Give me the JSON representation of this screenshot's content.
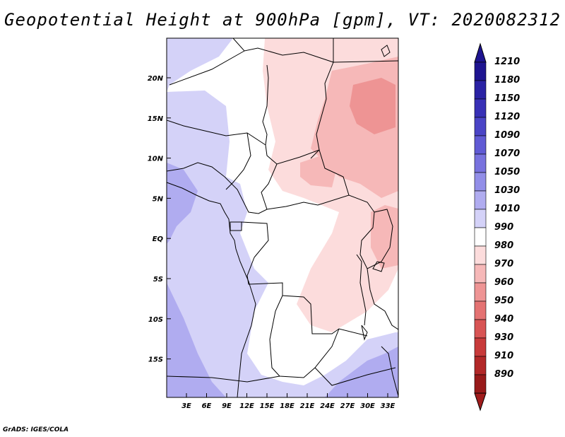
{
  "title": "Geopotential Height at 900hPa [gpm], VT: 2020082312",
  "credit": "GrADS: IGES/COLA",
  "map": {
    "lat_ticks": [
      "20N",
      "15N",
      "10N",
      "5N",
      "EQ",
      "5S",
      "10S",
      "15S"
    ],
    "lon_ticks": [
      "3E",
      "6E",
      "9E",
      "12E",
      "15E",
      "18E",
      "21E",
      "24E",
      "27E",
      "30E",
      "33E"
    ],
    "regions": [
      {
        "name": "low-northeast",
        "level": 970
      },
      {
        "name": "low-sudan-core",
        "level": 960
      },
      {
        "name": "low-central",
        "level": 980
      },
      {
        "name": "neutral-congo",
        "level": 990
      },
      {
        "name": "high-atlantic",
        "level": 1030
      },
      {
        "name": "high-gulf-guinea",
        "level": 1050
      },
      {
        "name": "high-southeast",
        "level": 1030
      }
    ]
  },
  "colorbar": {
    "levels": [
      {
        "label": "1210",
        "color": "#1e1490"
      },
      {
        "label": "1180",
        "color": "#2a22a4"
      },
      {
        "label": "1150",
        "color": "#3830b6"
      },
      {
        "label": "1120",
        "color": "#4a44c6"
      },
      {
        "label": "1090",
        "color": "#605ad4"
      },
      {
        "label": "1070",
        "color": "#7872de"
      },
      {
        "label": "1050",
        "color": "#928ee8"
      },
      {
        "label": "1030",
        "color": "#b0acf0"
      },
      {
        "label": "1010",
        "color": "#d4d2f8"
      },
      {
        "label": "990",
        "color": "#ffffff"
      },
      {
        "label": "980",
        "color": "#fcdcdc"
      },
      {
        "label": "970",
        "color": "#f6b8b8"
      },
      {
        "label": "960",
        "color": "#ee9494"
      },
      {
        "label": "950",
        "color": "#e47272"
      },
      {
        "label": "940",
        "color": "#d85454"
      },
      {
        "label": "930",
        "color": "#c83a3a"
      },
      {
        "label": "910",
        "color": "#b22828"
      },
      {
        "label": "890",
        "color": "#981a1a"
      }
    ],
    "top_color": "#1e1490",
    "bottom_color": "#a01c1c"
  }
}
